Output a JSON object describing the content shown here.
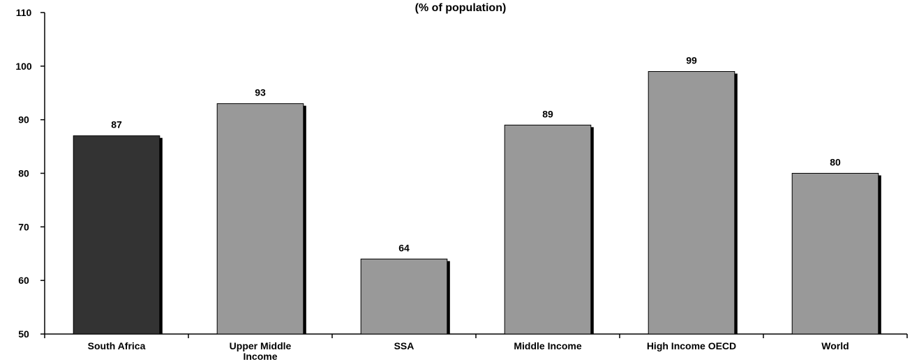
{
  "chart_data": {
    "type": "bar",
    "subtitle": "(% of population)",
    "categories": [
      "South Africa",
      "Upper Middle Income",
      "SSA",
      "Middle Income",
      "High Income OECD",
      "World"
    ],
    "category_lines": [
      [
        "South Africa"
      ],
      [
        "Upper Middle",
        "Income"
      ],
      [
        "SSA"
      ],
      [
        "Middle Income"
      ],
      [
        "High Income OECD"
      ],
      [
        "World"
      ]
    ],
    "values": [
      87,
      93,
      64,
      89,
      99,
      80
    ],
    "data_labels": [
      "87",
      "93",
      "64",
      "89",
      "99",
      "80"
    ],
    "ylim": [
      50,
      110
    ],
    "yticks": [
      50,
      60,
      70,
      80,
      90,
      100,
      110
    ],
    "bar_colors": [
      "#333333",
      "#999999",
      "#999999",
      "#999999",
      "#999999",
      "#999999"
    ],
    "shadow_color": "#000000",
    "grid": false,
    "legend": "none"
  }
}
